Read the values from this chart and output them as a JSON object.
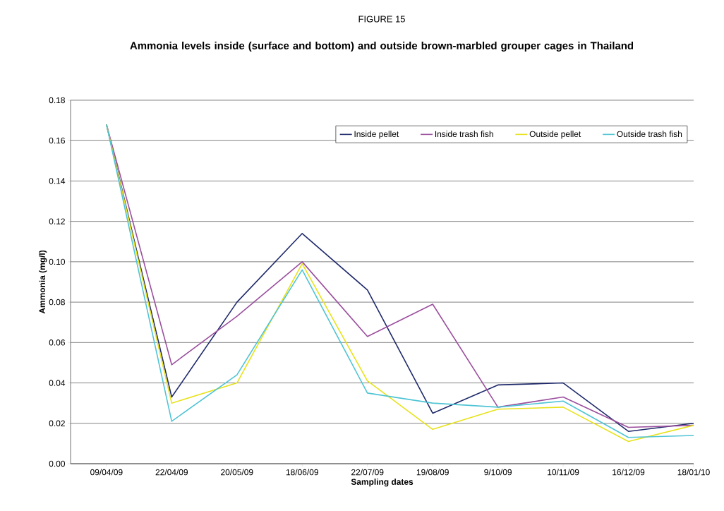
{
  "chart_data": {
    "type": "line",
    "title": "FIGURE 15",
    "subtitle": "Ammonia levels inside (surface and bottom) and outside brown-marbled grouper cages in Thailand",
    "xlabel": "Sampling dates",
    "ylabel": "Ammonia (mg/l)",
    "categories": [
      "09/04/09",
      "22/04/09",
      "20/05/09",
      "18/06/09",
      "22/07/09",
      "19/08/09",
      "9/10/09",
      "10/11/09",
      "16/12/09",
      "18/01/10"
    ],
    "series": [
      {
        "name": "Inside pellet",
        "color": "#1f2a6b",
        "values": [
          0.168,
          0.033,
          0.08,
          0.114,
          0.086,
          0.025,
          0.039,
          0.04,
          0.016,
          0.02
        ]
      },
      {
        "name": "Inside trash fish",
        "color": "#9b4f9e",
        "values": [
          0.168,
          0.049,
          0.073,
          0.1,
          0.063,
          0.079,
          0.028,
          0.033,
          0.018,
          0.019
        ]
      },
      {
        "name": "Outside pellet",
        "color": "#e8e21a",
        "values": [
          0.168,
          0.03,
          0.04,
          0.099,
          0.041,
          0.017,
          0.027,
          0.028,
          0.011,
          0.019
        ]
      },
      {
        "name": "Outside trash fish",
        "color": "#4fc4d4",
        "values": [
          0.168,
          0.021,
          0.044,
          0.096,
          0.035,
          0.03,
          0.028,
          0.031,
          0.013,
          0.014
        ]
      }
    ],
    "ylim": [
      0,
      0.18
    ],
    "yticks": [
      {
        "value": 0,
        "label": "0.00"
      },
      {
        "value": 0.02,
        "label": "0.02"
      },
      {
        "value": 0.04,
        "label": "0.04"
      },
      {
        "value": 0.06,
        "label": "0.06"
      },
      {
        "value": 0.08,
        "label": "0.08"
      },
      {
        "value": 0.1,
        "label": "0.10"
      },
      {
        "value": 0.12,
        "label": "0.12"
      },
      {
        "value": 0.14,
        "label": "0.14"
      },
      {
        "value": 0.16,
        "label": "0.16"
      },
      {
        "value": 0.18,
        "label": "0.18"
      }
    ],
    "grid": "y",
    "legend": "top right",
    "marker": "none",
    "line_style": "solid"
  }
}
